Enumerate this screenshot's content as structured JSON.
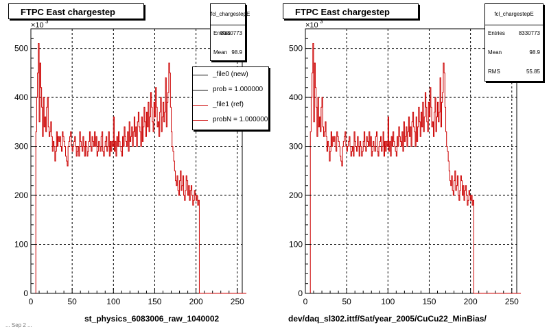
{
  "footer_text": "... Sep 2 ...",
  "chart_data": [
    {
      "type": "line",
      "title": "FTPC East chargestep",
      "xlabel": "st_physics_6083006_raw_1040002",
      "ylabel": "",
      "y_multiplier": "×10",
      "y_multiplier_exp": "3",
      "xlim": [
        0,
        256
      ],
      "ylim": [
        0,
        540
      ],
      "xticks": [
        0,
        50,
        100,
        150,
        200,
        250
      ],
      "yticks": [
        0,
        100,
        200,
        300,
        400,
        500
      ],
      "grid": true,
      "stats": {
        "name": "fcl_chargestepE",
        "rows": [
          {
            "label": "Entries",
            "value": "8330773"
          },
          {
            "label": "Mean",
            "value": "98.9"
          }
        ]
      },
      "legend": {
        "position": "top-right",
        "entries": [
          {
            "label": "_file0 (new)",
            "color": "#000000"
          },
          {
            "label": "prob = 1.000000",
            "color": "#000000"
          },
          {
            "label": "_file1 (ref)",
            "color": "#cc0000"
          },
          {
            "label": "probN = 1.000000",
            "color": "#cc0000"
          }
        ]
      },
      "series": [
        {
          "name": "_file0 (new)",
          "color": "#cc0000",
          "source": "shared"
        }
      ]
    },
    {
      "type": "line",
      "title": "FTPC East chargestep",
      "xlabel": "dev/daq_sl302.ittf/Sat/year_2005/CuCu22_MinBias/",
      "ylabel": "",
      "y_multiplier": "×10",
      "y_multiplier_exp": "3",
      "xlim": [
        0,
        256
      ],
      "ylim": [
        0,
        540
      ],
      "xticks": [
        0,
        50,
        100,
        150,
        200,
        250
      ],
      "yticks": [
        0,
        100,
        200,
        300,
        400,
        500
      ],
      "grid": true,
      "stats": {
        "name": "fcl_chargestepE",
        "rows": [
          {
            "label": "Entries",
            "value": "8330773"
          },
          {
            "label": "Mean",
            "value": "98.9"
          },
          {
            "label": "RMS",
            "value": "55.85"
          }
        ]
      },
      "series": [
        {
          "name": "_file1 (ref)",
          "color": "#cc0000",
          "source": "shared"
        }
      ]
    }
  ],
  "histogram": {
    "bin_width": 1,
    "values": [
      0,
      0,
      0,
      0,
      0,
      0,
      330,
      400,
      450,
      510,
      350,
      470,
      420,
      380,
      320,
      400,
      340,
      360,
      330,
      380,
      400,
      340,
      320,
      330,
      350,
      320,
      290,
      310,
      300,
      270,
      290,
      330,
      300,
      320,
      310,
      320,
      300,
      290,
      330,
      320,
      310,
      300,
      280,
      270,
      260,
      300,
      310,
      320,
      330,
      300,
      290,
      300,
      310,
      320,
      300,
      280,
      290,
      300,
      280,
      330,
      310,
      300,
      290,
      320,
      300,
      280,
      310,
      300,
      280,
      290,
      310,
      330,
      300,
      290,
      320,
      310,
      300,
      330,
      300,
      320,
      280,
      290,
      310,
      300,
      290,
      320,
      330,
      290,
      280,
      300,
      310,
      320,
      290,
      300,
      330,
      280,
      310,
      290,
      310,
      300,
      360,
      290,
      310,
      280,
      320,
      300,
      330,
      310,
      300,
      290,
      280,
      320,
      300,
      340,
      320,
      310,
      300,
      330,
      290,
      350,
      310,
      320,
      340,
      300,
      330,
      360,
      320,
      340,
      300,
      350,
      370,
      340,
      330,
      300,
      360,
      310,
      340,
      380,
      350,
      320,
      370,
      340,
      390,
      330,
      360,
      410,
      380,
      350,
      330,
      390,
      360,
      420,
      380,
      340,
      350,
      320,
      370,
      400,
      330,
      360,
      390,
      350,
      370,
      440,
      340,
      390,
      410,
      470,
      450,
      380,
      330,
      300,
      290,
      270,
      250,
      230,
      220,
      240,
      210,
      200,
      230,
      250,
      210,
      220,
      240,
      200,
      190,
      210,
      240,
      230,
      200,
      220,
      190,
      210,
      220,
      200,
      180,
      190,
      210,
      200,
      190,
      200,
      180,
      190,
      0,
      0,
      0,
      0,
      0,
      0,
      0,
      0,
      0,
      0,
      0,
      0,
      0,
      0,
      0,
      0,
      0,
      0,
      0,
      0,
      0,
      0,
      0,
      0,
      0,
      0,
      0,
      0,
      0,
      0,
      0,
      0,
      0,
      0,
      0,
      0,
      0,
      0,
      0,
      0,
      0,
      0,
      0,
      0,
      0,
      0,
      0,
      0,
      0,
      0,
      0,
      0,
      0,
      0,
      0,
      0,
      0
    ]
  }
}
